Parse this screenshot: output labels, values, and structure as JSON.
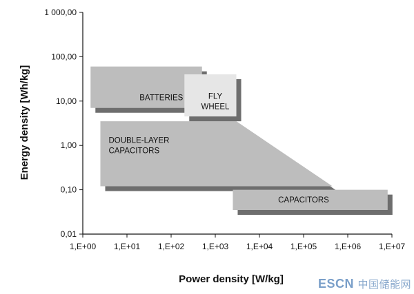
{
  "chart_data": {
    "type": "area",
    "xlabel": "Power density [W/kg]",
    "ylabel": "Energy density [Wh/kg]",
    "xscale": "log",
    "yscale": "log",
    "xlim": [
      1,
      10000000
    ],
    "ylim": [
      0.01,
      1000
    ],
    "grid": false,
    "x_tick_labels": [
      "1,E+00",
      "1,E+01",
      "1,E+02",
      "1,E+03",
      "1,E+04",
      "1,E+05",
      "1,E+06",
      "1,E+07"
    ],
    "y_tick_labels": [
      "0,01",
      "0,10",
      "1,00",
      "10,00",
      "100,00",
      "1 000,00"
    ],
    "regions": [
      {
        "label": "DOUBLE-LAYER CAPACITORS",
        "label_lines": [
          "DOUBLE-LAYER",
          "CAPACITORS"
        ],
        "color": "#bdbdbd",
        "polygon": [
          [
            2.5,
            3.5
          ],
          [
            3000,
            3.5
          ],
          [
            450000,
            0.12
          ],
          [
            2.5,
            0.12
          ]
        ],
        "label_at": [
          3,
          1
        ]
      },
      {
        "label": "BATTERIES",
        "label_lines": [
          "BATTERIES"
        ],
        "color": "#bdbdbd",
        "polygon": [
          [
            1.5,
            7
          ],
          [
            500,
            7
          ],
          [
            500,
            60
          ],
          [
            1.5,
            60
          ]
        ],
        "label_at": [
          60,
          12
        ]
      },
      {
        "label": "FLY WHEEL",
        "label_lines": [
          "FLY",
          "WHEEL"
        ],
        "color": "#e6e6e6",
        "polygon": [
          [
            200,
            4.5
          ],
          [
            3000,
            4.5
          ],
          [
            3000,
            40
          ],
          [
            200,
            40
          ]
        ],
        "label_at": [
          1000,
          10
        ]
      },
      {
        "label": "CAPACITORS",
        "label_lines": [
          "CAPACITORS"
        ],
        "color": "#bdbdbd",
        "polygon": [
          [
            2500,
            0.035
          ],
          [
            8000000,
            0.035
          ],
          [
            8000000,
            0.1
          ],
          [
            2500,
            0.1
          ]
        ],
        "label_at": [
          100000,
          0.06
        ]
      }
    ]
  },
  "watermark": {
    "brand": "ESCN",
    "cn": "中国储能网"
  }
}
